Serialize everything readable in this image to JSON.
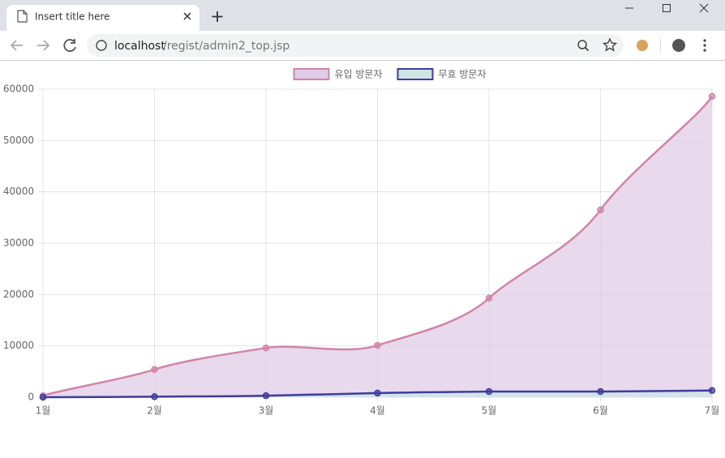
{
  "browser": {
    "tab_title": "Insert title here",
    "url_host": "localhost",
    "url_path": "/regist/admin2_top.jsp"
  },
  "chart_data": {
    "type": "line",
    "categories": [
      "1월",
      "2월",
      "3월",
      "4월",
      "5월",
      "6월",
      "7월"
    ],
    "series": [
      {
        "name": "유입 방문자",
        "color": "#d185a8",
        "fill": "#e0cce6",
        "values": [
          300,
          5400,
          9600,
          10100,
          19300,
          36500,
          58600
        ]
      },
      {
        "name": "무효 방문자",
        "color": "#3d3d9c",
        "fill": "#cde5e5",
        "values": [
          0,
          100,
          300,
          800,
          1100,
          1100,
          1300
        ]
      }
    ],
    "ylim": [
      0,
      60000
    ],
    "yticks": [
      0,
      10000,
      20000,
      30000,
      40000,
      50000,
      60000
    ],
    "grid": true,
    "legend": "top"
  }
}
